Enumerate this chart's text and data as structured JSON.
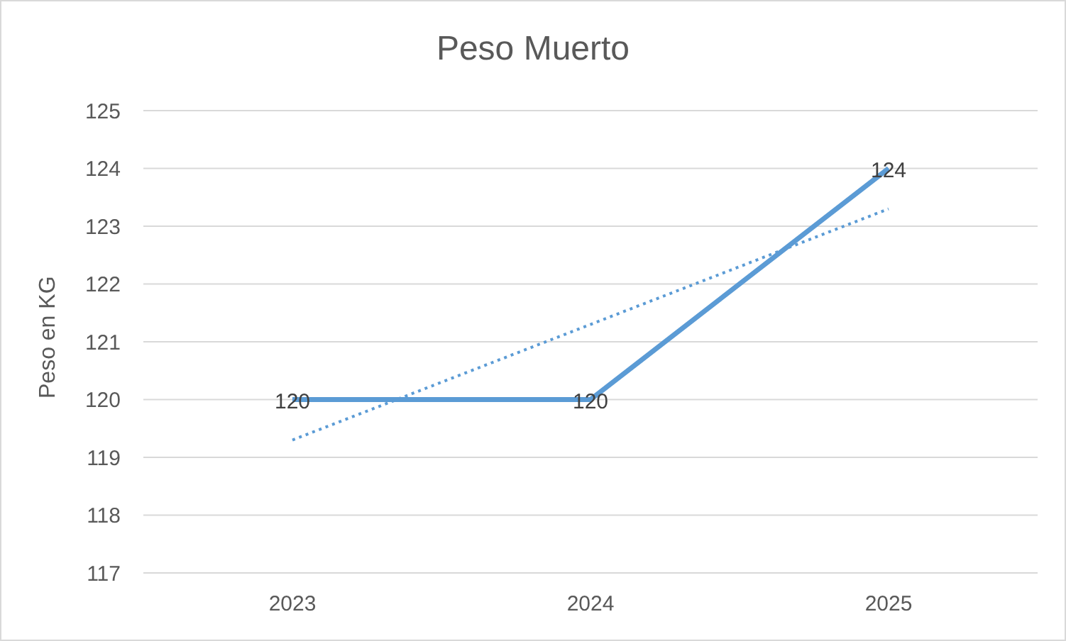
{
  "chart_data": {
    "type": "line",
    "title": "Peso Muerto",
    "ylabel": "Peso en KG",
    "categories": [
      "2023",
      "2024",
      "2025"
    ],
    "series": [
      {
        "color": "#5b9bd5",
        "values": [
          120,
          120,
          124
        ],
        "line_style": "solid",
        "data_labels": true
      },
      {
        "color": "#5b9bd5",
        "values": [
          119.3,
          121.3,
          123.3
        ],
        "line_style": "dotted"
      }
    ],
    "ylim": [
      117,
      125
    ],
    "yticks": [
      117,
      118,
      119,
      120,
      121,
      122,
      123,
      124,
      125
    ],
    "grid": "y",
    "marker": "none"
  }
}
